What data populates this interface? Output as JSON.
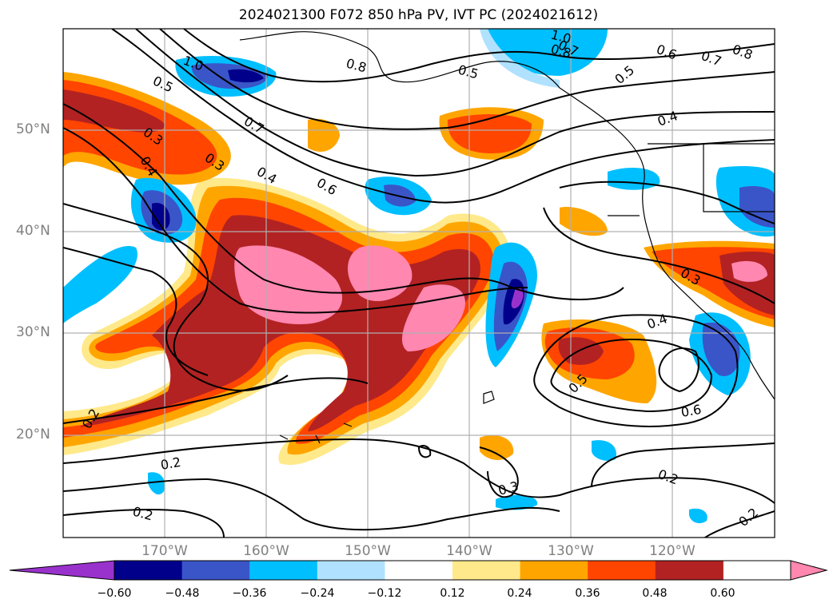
{
  "title": "2024021300 F072 850 hPa PV, IVT PC (2024021612)",
  "lat_labels": [
    "50°N",
    "40°N",
    "30°N",
    "20°N"
  ],
  "lon_labels": [
    "170°W",
    "160°W",
    "150°W",
    "140°W",
    "130°W",
    "120°W"
  ],
  "colorbar": {
    "ticks": [
      "−0.60",
      "−0.48",
      "−0.36",
      "−0.24",
      "−0.12",
      "0.12",
      "0.24",
      "0.36",
      "0.48",
      "0.60"
    ],
    "colors": [
      "#9932cc",
      "#00008b",
      "#3a55c8",
      "#00bfff",
      "#b0e2ff",
      "#ffffff",
      "#ffe98a",
      "#ffa500",
      "#ff4500",
      "#b22222",
      "#ff87b0"
    ]
  },
  "contour_labels": [
    "1.0",
    "0.5",
    "0.8",
    "0.5",
    "0.6",
    "0.7",
    "0.8",
    "1.0",
    "0.8",
    "0.5",
    "0.4",
    "0.3",
    "0.7",
    "0.3",
    "0.4",
    "0.4",
    "0.6",
    "0.3",
    "0.4",
    "0.5",
    "0.6",
    "0.2",
    "0.2",
    "0.2",
    "0.3",
    "0.2",
    "0.2",
    "0.7"
  ],
  "colors": {
    "grid": "#b0b0b0",
    "contour": "#000000",
    "axis_text": "#808080"
  }
}
